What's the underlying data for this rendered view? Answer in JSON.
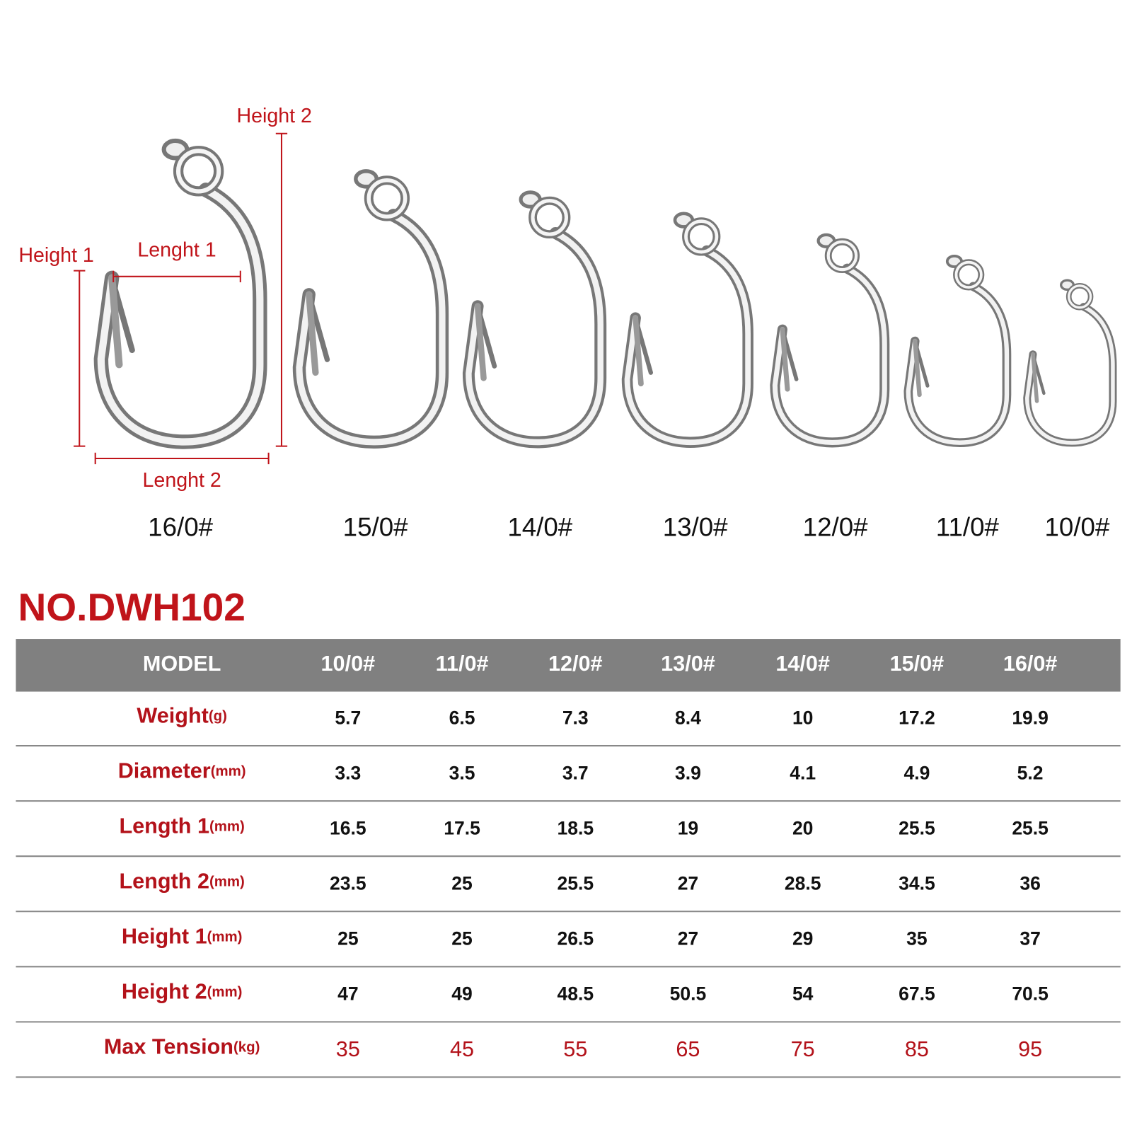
{
  "diagram": {
    "dimension_labels": {
      "height_2": "Height 2",
      "height_1": "Height 1",
      "length_1": "Lenght 1",
      "length_2": "Lenght 2"
    },
    "hook_sizes": [
      "16/0#",
      "15/0#",
      "14/0#",
      "13/0#",
      "12/0#",
      "11/0#",
      "10/0#"
    ]
  },
  "title": "NO.DWH102",
  "table": {
    "header": [
      "MODEL",
      "10/0#",
      "11/0#",
      "12/0#",
      "13/0#",
      "14/0#",
      "15/0#",
      "16/0#"
    ],
    "rows": [
      {
        "label": "Weight",
        "unit": "(g)",
        "values": [
          5.7,
          6.5,
          7.3,
          8.4,
          10,
          17.2,
          19.9
        ]
      },
      {
        "label": "Diameter",
        "unit": "(mm)",
        "values": [
          3.3,
          3.5,
          3.7,
          3.9,
          4.1,
          4.9,
          5.2
        ]
      },
      {
        "label": "Length 1",
        "unit": "(mm)",
        "values": [
          16.5,
          17.5,
          18.5,
          19,
          20,
          25.5,
          25.5
        ]
      },
      {
        "label": "Length 2",
        "unit": "(mm)",
        "values": [
          23.5,
          25,
          25.5,
          27,
          28.5,
          34.5,
          36
        ]
      },
      {
        "label": "Height 1",
        "unit": "(mm)",
        "values": [
          25,
          25,
          26.5,
          27,
          29,
          35,
          37
        ]
      },
      {
        "label": "Height 2",
        "unit": "(mm)",
        "values": [
          47,
          49,
          48.5,
          50.5,
          54,
          67.5,
          70.5
        ]
      },
      {
        "label": "Max Tension",
        "unit": "(kg)",
        "values": [
          35,
          45,
          55,
          65,
          75,
          85,
          95
        ]
      }
    ]
  }
}
